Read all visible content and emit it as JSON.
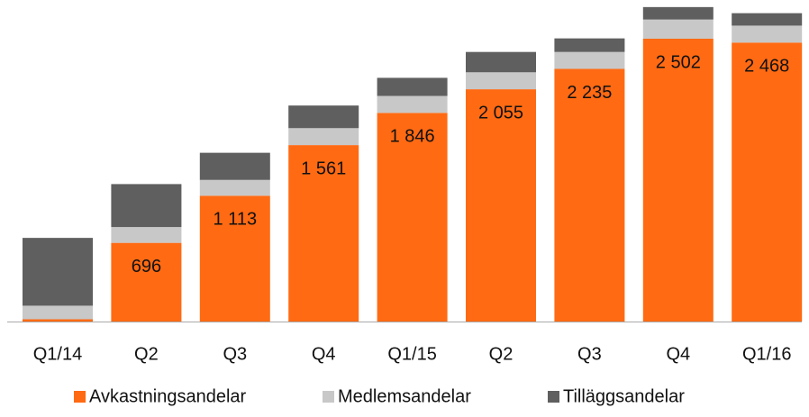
{
  "chart_data": {
    "type": "stacked_bar",
    "categories": [
      "Q1/14",
      "Q2",
      "Q3",
      "Q4",
      "Q1/15",
      "Q2",
      "Q3",
      "Q4",
      "Q1/16"
    ],
    "series": [
      {
        "name": "Avkastningsandelar",
        "color": "#ff6a13",
        "values": [
          20,
          696,
          1113,
          1561,
          1846,
          2055,
          2235,
          2502,
          2468
        ],
        "value_labels": [
          null,
          "696",
          "1 113",
          "1 561",
          "1 846",
          "2 055",
          "2 235",
          "2 502",
          "2 468"
        ]
      },
      {
        "name": "Medlemsandelar",
        "color": "#c8c8c8",
        "values": [
          120,
          140,
          140,
          150,
          150,
          150,
          150,
          170,
          150
        ]
      },
      {
        "name": "Tilläggsandelar",
        "color": "#5f5f5f",
        "values": [
          600,
          380,
          240,
          200,
          160,
          180,
          120,
          110,
          110
        ]
      }
    ]
  }
}
